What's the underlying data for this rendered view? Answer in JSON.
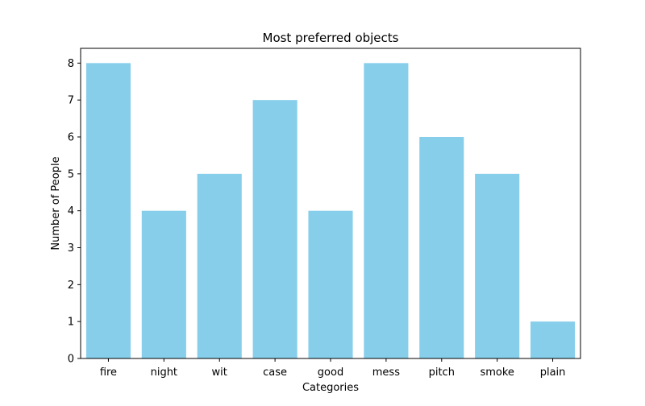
{
  "chart_data": {
    "type": "bar",
    "title": "Most preferred objects",
    "xlabel": "Categories",
    "ylabel": "Number of People",
    "categories": [
      "fire",
      "night",
      "wit",
      "case",
      "good",
      "mess",
      "pitch",
      "smoke",
      "plain"
    ],
    "values": [
      8,
      4,
      5,
      7,
      4,
      8,
      6,
      5,
      1
    ],
    "ylim": [
      0,
      8.4
    ],
    "yticks": [
      0,
      1,
      2,
      3,
      4,
      5,
      6,
      7,
      8
    ],
    "grid": false,
    "legend": "none",
    "bar_color": "#87ceeb"
  }
}
